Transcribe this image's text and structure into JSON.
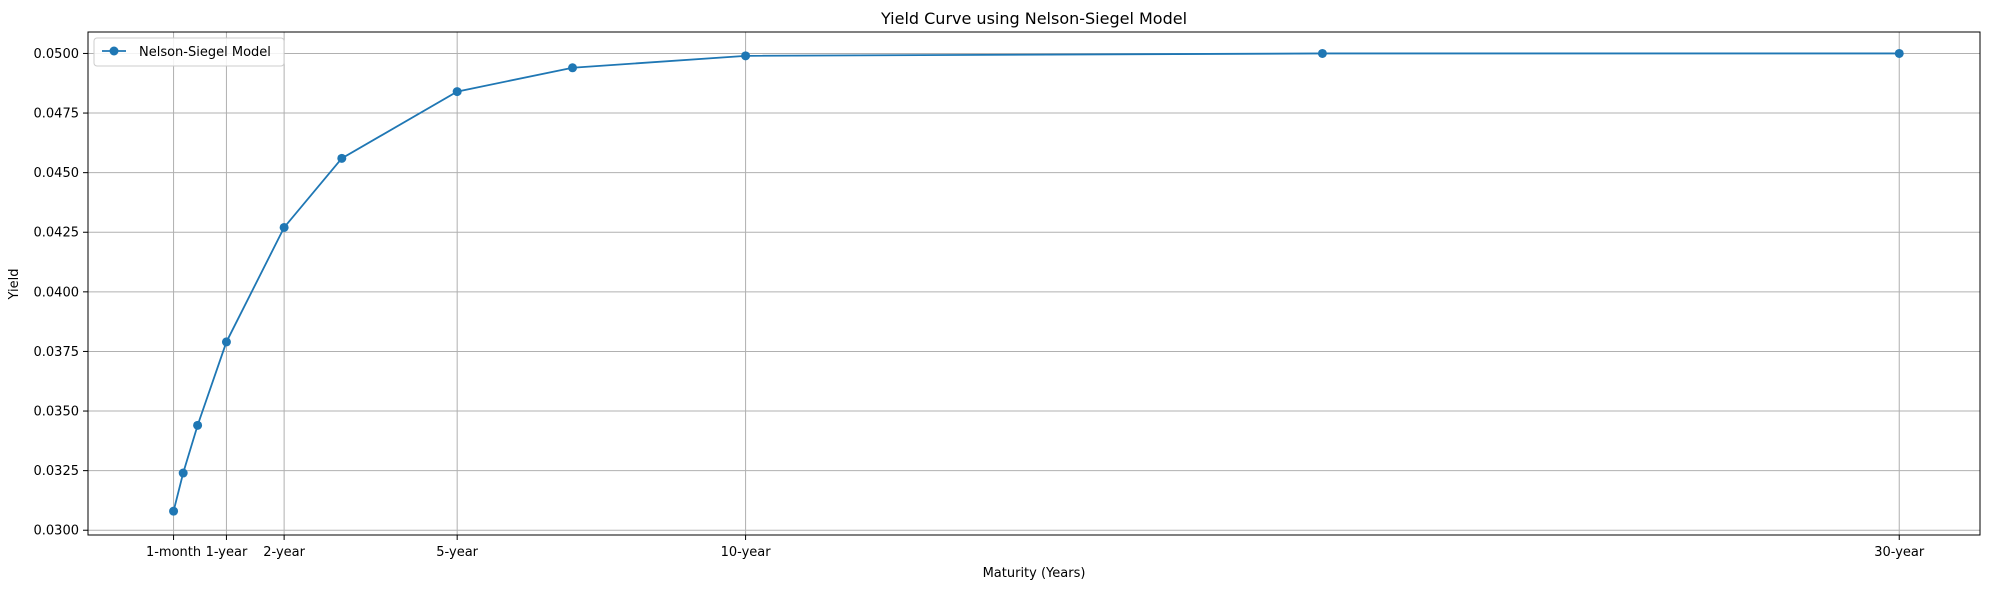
{
  "chart_data": {
    "type": "line",
    "title": "Yield Curve using Nelson-Siegel Model",
    "xlabel": "Maturity (Years)",
    "ylabel": "Yield",
    "xlim": [
      -1.4,
      31.4
    ],
    "ylim": [
      0.0298,
      0.0509
    ],
    "grid": true,
    "legend_position": "top-left",
    "x_ticks": [
      {
        "value": 0.0833,
        "label": "1-month"
      },
      {
        "value": 1,
        "label": "1-year"
      },
      {
        "value": 2,
        "label": "2-year"
      },
      {
        "value": 5,
        "label": "5-year"
      },
      {
        "value": 10,
        "label": "10-year"
      },
      {
        "value": 30,
        "label": "30-year"
      }
    ],
    "y_ticks": [
      {
        "value": 0.03,
        "label": "0.0300"
      },
      {
        "value": 0.0325,
        "label": "0.0325"
      },
      {
        "value": 0.035,
        "label": "0.0350"
      },
      {
        "value": 0.0375,
        "label": "0.0375"
      },
      {
        "value": 0.04,
        "label": "0.0400"
      },
      {
        "value": 0.0425,
        "label": "0.0425"
      },
      {
        "value": 0.045,
        "label": "0.0450"
      },
      {
        "value": 0.0475,
        "label": "0.0475"
      },
      {
        "value": 0.05,
        "label": "0.0500"
      }
    ],
    "series": [
      {
        "name": "Nelson-Siegel Model",
        "color": "#1f77b4",
        "x": [
          0.0833,
          0.25,
          0.5,
          1,
          2,
          3,
          5,
          7,
          10,
          20,
          30
        ],
        "y": [
          0.0308,
          0.0324,
          0.0344,
          0.0379,
          0.0427,
          0.0456,
          0.0484,
          0.0494,
          0.0499,
          0.05,
          0.05
        ]
      }
    ]
  }
}
